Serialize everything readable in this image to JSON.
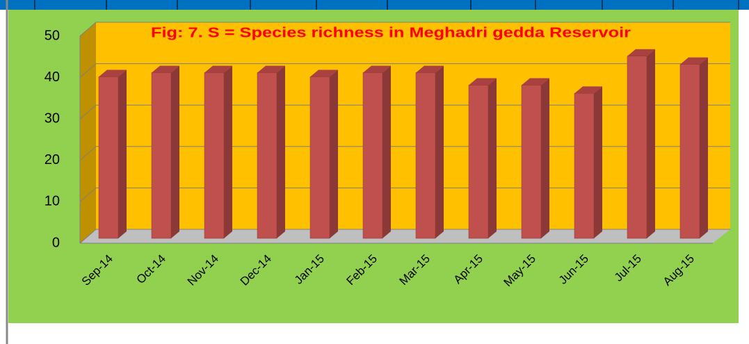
{
  "chart_data": {
    "type": "bar",
    "title": "Fig: 7. S = Species richness in Meghadri gedda Reservoir",
    "categories": [
      "Sep-14",
      "Oct-14",
      "Nov-14",
      "Dec-14",
      "Jan-15",
      "Feb-15",
      "Mar-15",
      "Apr-15",
      "May-15",
      "Jun-15",
      "Jul-15",
      "Aug-15"
    ],
    "values": [
      39,
      40,
      40,
      40,
      39,
      40,
      40,
      37,
      37,
      35,
      44,
      42
    ],
    "color": "#c0504d",
    "ylim": [
      0,
      50
    ],
    "yticks": [
      0,
      10,
      20,
      30,
      40,
      50
    ],
    "grid": true
  }
}
